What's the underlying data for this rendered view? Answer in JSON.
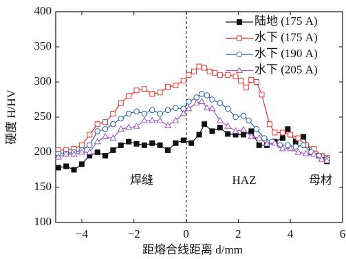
{
  "chart_data": {
    "type": "line",
    "xlabel": "距熔合线距离 d/mm",
    "ylabel": "硬度 H/HV",
    "annotations": [
      "焊缝",
      "HAZ",
      "母材"
    ],
    "xlim": [
      -5,
      6
    ],
    "xticks": [
      {
        "value": -4,
        "label": "−4"
      },
      {
        "value": -2,
        "label": "−2"
      },
      0,
      2,
      4,
      6
    ],
    "ylim": [
      100,
      400
    ],
    "yticks": [
      100,
      150,
      200,
      250,
      300,
      350,
      400
    ],
    "legend": "upper right",
    "series": [
      {
        "name": "陆地 (175 A)",
        "color": "#111111",
        "marker": "square-filled",
        "x": [
          -4.9,
          -4.6,
          -4.3,
          -4.0,
          -3.7,
          -3.4,
          -3.1,
          -2.8,
          -2.5,
          -2.2,
          -1.9,
          -1.6,
          -1.3,
          -1.0,
          -0.7,
          -0.4,
          -0.1,
          0.2,
          0.5,
          0.7,
          1.0,
          1.3,
          1.6,
          1.9,
          2.2,
          2.5,
          2.8,
          3.1,
          3.4,
          3.7,
          3.9,
          4.2,
          4.5,
          4.8,
          5.1,
          5.4
        ],
        "values": [
          178,
          180,
          175,
          183,
          195,
          200,
          195,
          203,
          210,
          215,
          212,
          210,
          213,
          210,
          203,
          213,
          217,
          213,
          225,
          240,
          230,
          235,
          226,
          225,
          225,
          230,
          210,
          210,
          215,
          220,
          233,
          215,
          222,
          200,
          195,
          187
        ]
      },
      {
        "name": "水下 (175 A)",
        "color": "#e8302a",
        "marker": "square",
        "x": [
          -4.9,
          -4.6,
          -4.3,
          -4.0,
          -3.7,
          -3.4,
          -3.1,
          -2.8,
          -2.5,
          -2.2,
          -1.9,
          -1.6,
          -1.3,
          -1.0,
          -0.7,
          -0.4,
          -0.1,
          0.1,
          0.3,
          0.5,
          0.7,
          0.9,
          1.1,
          1.3,
          1.6,
          1.9,
          2.1,
          2.3,
          2.5,
          2.7,
          2.9,
          3.2,
          3.4,
          3.7,
          4.0,
          4.3,
          4.6,
          4.9,
          5.2,
          5.4
        ],
        "values": [
          203,
          203,
          205,
          210,
          225,
          240,
          243,
          255,
          270,
          280,
          288,
          290,
          283,
          285,
          293,
          295,
          302,
          310,
          315,
          322,
          320,
          315,
          313,
          310,
          310,
          308,
          302,
          292,
          303,
          300,
          282,
          240,
          228,
          228,
          225,
          220,
          210,
          205,
          195,
          192
        ]
      },
      {
        "name": "水下 (190 A)",
        "color": "#1f5fb0",
        "marker": "circle",
        "x": [
          -4.9,
          -4.6,
          -4.3,
          -4.0,
          -3.7,
          -3.4,
          -3.1,
          -2.8,
          -2.5,
          -2.2,
          -1.9,
          -1.6,
          -1.3,
          -1.0,
          -0.7,
          -0.4,
          -0.1,
          0.1,
          0.4,
          0.6,
          0.8,
          1.0,
          1.3,
          1.6,
          1.9,
          2.2,
          2.4,
          2.7,
          3.0,
          3.3,
          3.6,
          3.9,
          4.2,
          4.5,
          4.8,
          5.1,
          5.4
        ],
        "values": [
          198,
          198,
          200,
          203,
          210,
          230,
          233,
          240,
          248,
          255,
          258,
          255,
          260,
          255,
          260,
          263,
          262,
          272,
          278,
          283,
          281,
          275,
          270,
          262,
          250,
          252,
          245,
          233,
          220,
          215,
          210,
          210,
          208,
          210,
          200,
          195,
          190
        ]
      },
      {
        "name": "水下 (205 A)",
        "color": "#a050c0",
        "marker": "triangle",
        "x": [
          -4.9,
          -4.6,
          -4.3,
          -4.0,
          -3.7,
          -3.4,
          -3.1,
          -2.8,
          -2.5,
          -2.2,
          -1.9,
          -1.6,
          -1.3,
          -1.0,
          -0.7,
          -0.4,
          -0.1,
          0.1,
          0.4,
          0.6,
          0.8,
          1.0,
          1.3,
          1.6,
          1.9,
          2.2,
          2.5,
          2.8,
          3.1,
          3.4,
          3.7,
          4.0,
          4.3,
          4.6,
          4.9,
          5.2,
          5.4
        ],
        "values": [
          193,
          197,
          197,
          200,
          200,
          215,
          222,
          220,
          233,
          235,
          237,
          245,
          245,
          245,
          238,
          245,
          255,
          262,
          270,
          272,
          263,
          262,
          245,
          237,
          230,
          232,
          222,
          220,
          212,
          213,
          205,
          205,
          200,
          198,
          197,
          190,
          188
        ]
      }
    ]
  }
}
